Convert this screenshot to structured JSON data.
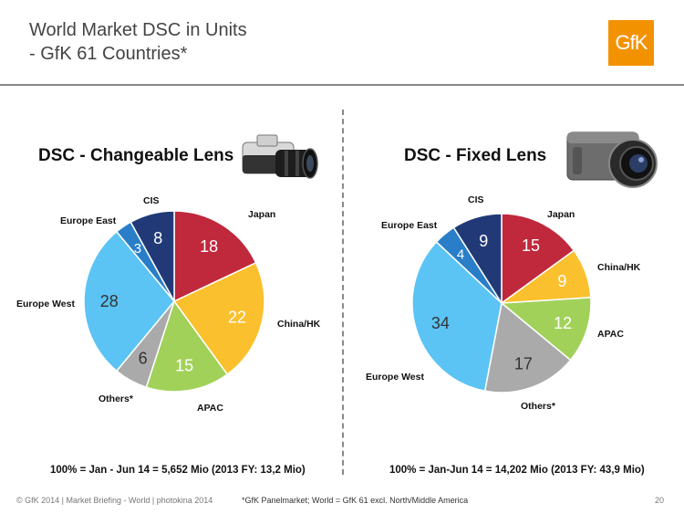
{
  "header": {
    "title_line1": "World Market DSC in Units",
    "title_line2": "- GfK 61 Countries*",
    "logo_text": "GfK"
  },
  "colors": {
    "Japan": "#c0283c",
    "China/HK": "#fbc02d",
    "APAC": "#a2d15a",
    "Others*": "#aaaaaa",
    "Europe West": "#5bc4f5",
    "Europe East": "#2a7ec8",
    "CIS": "#213a77",
    "logo": "#f39200"
  },
  "chart_data": [
    {
      "type": "pie",
      "title": "DSC - Changeable Lens",
      "labels": [
        "Japan",
        "China/HK",
        "APAC",
        "Others*",
        "Europe West",
        "Europe East",
        "CIS"
      ],
      "values": [
        18,
        22,
        15,
        6,
        28,
        3,
        8
      ],
      "footnote": "100% = Jan - Jun 14 = 5,652 Mio (2013 FY: 13,2 Mio)"
    },
    {
      "type": "pie",
      "title": "DSC - Fixed Lens",
      "labels": [
        "Japan",
        "China/HK",
        "APAC",
        "Others*",
        "Europe West",
        "Europe East",
        "CIS"
      ],
      "values": [
        15,
        9,
        12,
        17,
        34,
        4,
        9
      ],
      "footnote": "100% = Jan-Jun 14 = 14,202 Mio (2013 FY: 43,9 Mio)"
    }
  ],
  "footer": {
    "copyright": "© GfK 2014 | Market Briefing - World | photokina 2014",
    "note": "*GfK Panelmarket; World = GfK 61 excl. North/Middle America",
    "page_number": "20"
  }
}
